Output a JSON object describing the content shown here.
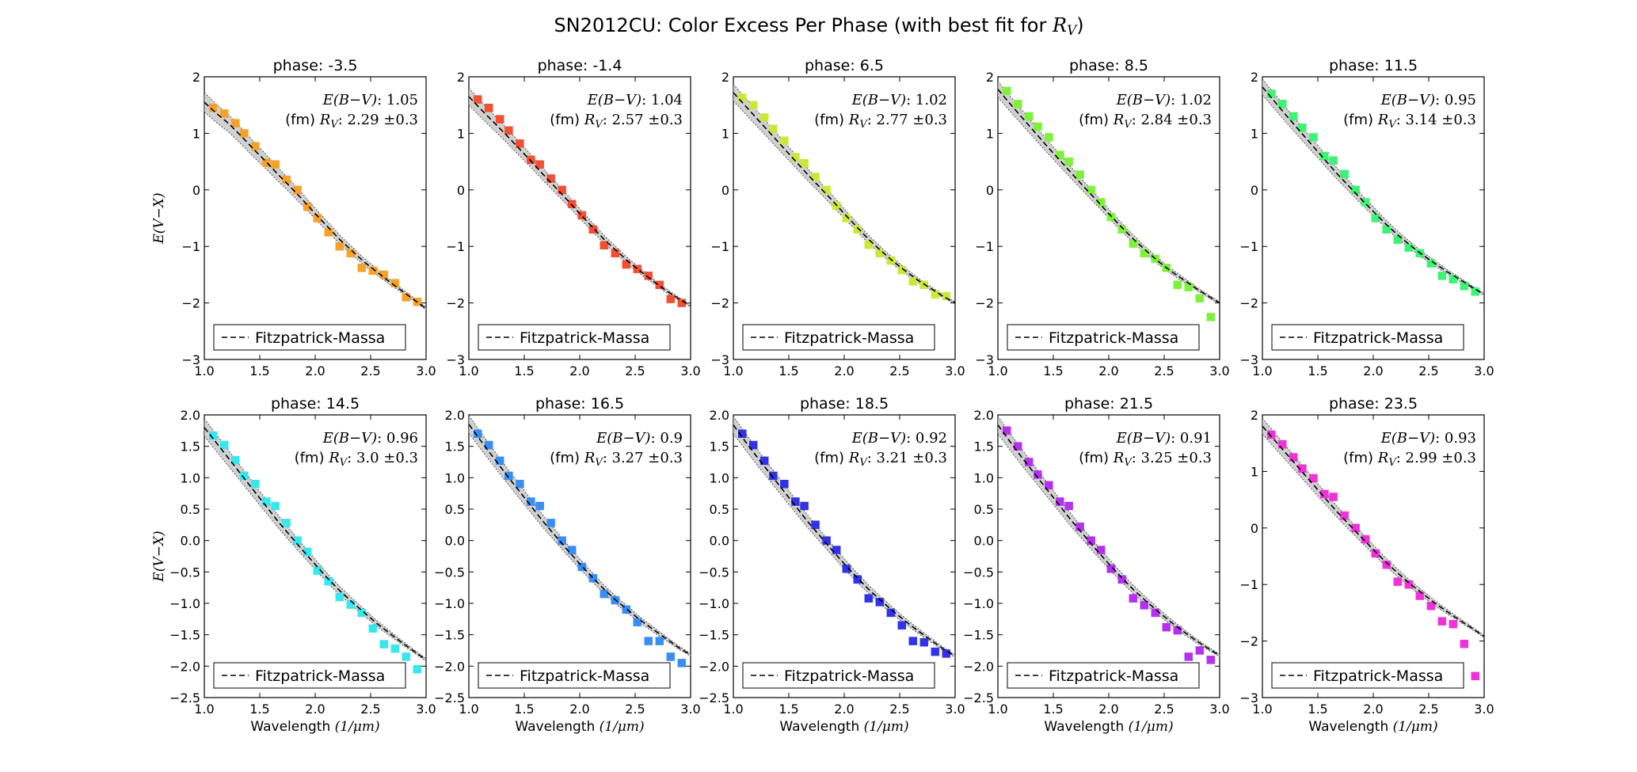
{
  "figure": {
    "title": "SN2012CU: Color Excess Per Phase (with best fit for R_V)",
    "ylabel": "E(V−X)",
    "xlabel": "Wavelength (1/μm)",
    "legend_label": "Fitzpatrick-Massa",
    "ebv_label": "E(B−V): ",
    "rv_label": "(fm) R_V: ",
    "rv_error": "±0.3"
  },
  "chart_data": [
    {
      "type": "scatter",
      "phase_label": "phase: -3.5",
      "color": "#f7a128",
      "ebv": "1.05",
      "rv": "2.29",
      "ylim": [
        -3,
        2
      ],
      "yticks": [
        "2",
        "1",
        "0",
        "−1",
        "−2",
        "−3"
      ],
      "xlim": [
        1.0,
        3.0
      ],
      "xticks": [
        "1.0",
        "1.5",
        "2.0",
        "2.5",
        "3.0"
      ],
      "x": [
        1.08,
        1.18,
        1.28,
        1.36,
        1.46,
        1.56,
        1.64,
        1.74,
        1.84,
        1.93,
        2.02,
        2.12,
        2.22,
        2.32,
        2.42,
        2.52,
        2.62,
        2.72,
        2.82,
        2.92
      ],
      "y": [
        1.45,
        1.35,
        1.18,
        1.0,
        0.77,
        0.48,
        0.45,
        0.18,
        0.0,
        -0.3,
        -0.5,
        -0.75,
        -1.0,
        -1.12,
        -1.38,
        -1.43,
        -1.5,
        -1.65,
        -1.9,
        -1.98
      ],
      "fit": [
        1.55,
        1.35,
        1.17,
        0.95,
        0.72,
        0.5,
        0.27,
        0.05,
        -0.18,
        -0.42,
        -0.65,
        -0.88,
        -1.08,
        -1.28,
        -1.45,
        -1.62,
        -1.78,
        -1.94,
        -2.1
      ],
      "band": 0.15
    },
    {
      "type": "scatter",
      "phase_label": "phase: -1.4",
      "color": "#f05034",
      "ebv": "1.04",
      "rv": "2.57",
      "ylim": [
        -3,
        2
      ],
      "yticks": [
        "2",
        "1",
        "0",
        "−1",
        "−2",
        "−3"
      ],
      "xlim": [
        1.0,
        3.0
      ],
      "xticks": [
        "1.0",
        "1.5",
        "2.0",
        "2.5",
        "3.0"
      ],
      "x": [
        1.08,
        1.18,
        1.28,
        1.36,
        1.46,
        1.56,
        1.64,
        1.74,
        1.84,
        1.93,
        2.02,
        2.12,
        2.22,
        2.32,
        2.42,
        2.52,
        2.62,
        2.72,
        2.82,
        2.92
      ],
      "y": [
        1.6,
        1.45,
        1.25,
        1.05,
        0.82,
        0.53,
        0.45,
        0.2,
        0.0,
        -0.25,
        -0.45,
        -0.7,
        -0.98,
        -1.12,
        -1.32,
        -1.4,
        -1.52,
        -1.68,
        -1.93,
        -2.0
      ],
      "fit": [
        1.65,
        1.42,
        1.2,
        0.98,
        0.75,
        0.52,
        0.28,
        0.05,
        -0.18,
        -0.42,
        -0.65,
        -0.88,
        -1.08,
        -1.28,
        -1.45,
        -1.62,
        -1.78,
        -1.92,
        -2.05
      ],
      "band": 0.13
    },
    {
      "type": "scatter",
      "phase_label": "phase: 6.5",
      "color": "#cbe83a",
      "ebv": "1.02",
      "rv": "2.77",
      "ylim": [
        -3,
        2
      ],
      "yticks": [
        "2",
        "1",
        "0",
        "−1",
        "−2",
        "−3"
      ],
      "xlim": [
        1.0,
        3.0
      ],
      "xticks": [
        "1.0",
        "1.5",
        "2.0",
        "2.5",
        "3.0"
      ],
      "x": [
        1.08,
        1.18,
        1.28,
        1.36,
        1.46,
        1.56,
        1.64,
        1.74,
        1.84,
        1.93,
        2.02,
        2.12,
        2.22,
        2.32,
        2.42,
        2.52,
        2.62,
        2.72,
        2.82,
        2.92
      ],
      "y": [
        1.63,
        1.5,
        1.28,
        1.08,
        0.87,
        0.58,
        0.47,
        0.23,
        0.0,
        -0.28,
        -0.5,
        -0.7,
        -0.97,
        -1.12,
        -1.25,
        -1.42,
        -1.62,
        -1.68,
        -1.85,
        -1.88
      ],
      "fit": [
        1.72,
        1.48,
        1.24,
        1.0,
        0.76,
        0.52,
        0.28,
        0.05,
        -0.18,
        -0.42,
        -0.65,
        -0.88,
        -1.08,
        -1.27,
        -1.44,
        -1.6,
        -1.74,
        -1.88,
        -2.0
      ],
      "band": 0.13
    },
    {
      "type": "scatter",
      "phase_label": "phase: 8.5",
      "color": "#7ef23a",
      "ebv": "1.02",
      "rv": "2.84",
      "ylim": [
        -3,
        2
      ],
      "yticks": [
        "2",
        "1",
        "0",
        "−1",
        "−2",
        "−3"
      ],
      "xlim": [
        1.0,
        3.0
      ],
      "xticks": [
        "1.0",
        "1.5",
        "2.0",
        "2.5",
        "3.0"
      ],
      "x": [
        1.08,
        1.18,
        1.28,
        1.36,
        1.46,
        1.56,
        1.64,
        1.74,
        1.84,
        1.93,
        2.02,
        2.12,
        2.22,
        2.32,
        2.42,
        2.52,
        2.62,
        2.72,
        2.82,
        2.92
      ],
      "y": [
        1.75,
        1.52,
        1.3,
        1.12,
        0.93,
        0.62,
        0.5,
        0.27,
        0.0,
        -0.22,
        -0.48,
        -0.7,
        -0.95,
        -1.12,
        -1.22,
        -1.38,
        -1.68,
        -1.72,
        -1.92,
        -2.25
      ],
      "fit": [
        1.78,
        1.52,
        1.27,
        1.02,
        0.77,
        0.53,
        0.29,
        0.05,
        -0.18,
        -0.42,
        -0.65,
        -0.87,
        -1.07,
        -1.26,
        -1.43,
        -1.58,
        -1.73,
        -1.87,
        -2.0
      ],
      "band": 0.12
    },
    {
      "type": "scatter",
      "phase_label": "phase: 11.5",
      "color": "#3ef275",
      "ebv": "0.95",
      "rv": "3.14",
      "ylim": [
        -3,
        2
      ],
      "yticks": [
        "2",
        "1",
        "0",
        "−1",
        "−2",
        "−3"
      ],
      "xlim": [
        1.0,
        3.0
      ],
      "xticks": [
        "1.0",
        "1.5",
        "2.0",
        "2.5",
        "3.0"
      ],
      "x": [
        1.08,
        1.18,
        1.28,
        1.36,
        1.46,
        1.56,
        1.64,
        1.74,
        1.84,
        1.93,
        2.02,
        2.12,
        2.22,
        2.32,
        2.42,
        2.52,
        2.62,
        2.72,
        2.82,
        2.92
      ],
      "y": [
        1.7,
        1.52,
        1.3,
        1.1,
        0.93,
        0.6,
        0.52,
        0.28,
        0.0,
        -0.22,
        -0.5,
        -0.7,
        -0.88,
        -1.02,
        -1.12,
        -1.3,
        -1.52,
        -1.58,
        -1.7,
        -1.8
      ],
      "fit": [
        1.82,
        1.56,
        1.3,
        1.05,
        0.8,
        0.55,
        0.3,
        0.07,
        -0.16,
        -0.38,
        -0.6,
        -0.8,
        -0.98,
        -1.15,
        -1.3,
        -1.45,
        -1.58,
        -1.72,
        -1.85
      ],
      "band": 0.12
    },
    {
      "type": "scatter",
      "phase_label": "phase: 14.5",
      "color": "#38e6ee",
      "ebv": "0.96",
      "rv": "3.0",
      "ylim": [
        -2.5,
        2.0
      ],
      "yticks": [
        "2.0",
        "1.5",
        "1.0",
        "0.5",
        "0.0",
        "−0.5",
        "−1.0",
        "−1.5",
        "−2.0",
        "−2.5"
      ],
      "xlim": [
        1.0,
        3.0
      ],
      "xticks": [
        "1.0",
        "1.5",
        "2.0",
        "2.5",
        "3.0"
      ],
      "x": [
        1.08,
        1.18,
        1.28,
        1.36,
        1.46,
        1.56,
        1.64,
        1.74,
        1.84,
        1.93,
        2.02,
        2.12,
        2.22,
        2.32,
        2.42,
        2.52,
        2.62,
        2.72,
        2.82,
        2.92
      ],
      "y": [
        1.67,
        1.52,
        1.28,
        1.03,
        0.9,
        0.62,
        0.55,
        0.28,
        0.0,
        -0.18,
        -0.48,
        -0.65,
        -0.9,
        -1.02,
        -1.15,
        -1.4,
        -1.65,
        -1.72,
        -1.85,
        -2.05
      ],
      "fit": [
        1.8,
        1.55,
        1.3,
        1.05,
        0.8,
        0.55,
        0.3,
        0.07,
        -0.16,
        -0.38,
        -0.6,
        -0.8,
        -0.98,
        -1.15,
        -1.32,
        -1.47,
        -1.62,
        -1.76,
        -1.9
      ],
      "band": 0.12
    },
    {
      "type": "scatter",
      "phase_label": "phase: 16.5",
      "color": "#3a8ef2",
      "ebv": "0.9",
      "rv": "3.27",
      "ylim": [
        -2.5,
        2.0
      ],
      "yticks": [
        "2.0",
        "1.5",
        "1.0",
        "0.5",
        "0.0",
        "−0.5",
        "−1.0",
        "−1.5",
        "−2.0",
        "−2.5"
      ],
      "xlim": [
        1.0,
        3.0
      ],
      "xticks": [
        "1.0",
        "1.5",
        "2.0",
        "2.5",
        "3.0"
      ],
      "x": [
        1.08,
        1.18,
        1.28,
        1.36,
        1.46,
        1.56,
        1.64,
        1.74,
        1.84,
        1.93,
        2.02,
        2.12,
        2.22,
        2.32,
        2.42,
        2.52,
        2.62,
        2.72,
        2.82,
        2.92
      ],
      "y": [
        1.7,
        1.52,
        1.27,
        1.03,
        0.9,
        0.62,
        0.55,
        0.28,
        0.0,
        -0.15,
        -0.42,
        -0.6,
        -0.85,
        -0.95,
        -1.1,
        -1.3,
        -1.6,
        -1.6,
        -1.85,
        -1.95
      ],
      "fit": [
        1.85,
        1.58,
        1.32,
        1.06,
        0.81,
        0.56,
        0.31,
        0.08,
        -0.15,
        -0.37,
        -0.58,
        -0.78,
        -0.96,
        -1.12,
        -1.28,
        -1.42,
        -1.56,
        -1.7,
        -1.82
      ],
      "band": 0.12
    },
    {
      "type": "scatter",
      "phase_label": "phase: 18.5",
      "color": "#3232e8",
      "ebv": "0.92",
      "rv": "3.21",
      "ylim": [
        -2.5,
        2.0
      ],
      "yticks": [
        "2.0",
        "1.5",
        "1.0",
        "0.5",
        "0.0",
        "−0.5",
        "−1.0",
        "−1.5",
        "−2.0",
        "−2.5"
      ],
      "xlim": [
        1.0,
        3.0
      ],
      "xticks": [
        "1.0",
        "1.5",
        "2.0",
        "2.5",
        "3.0"
      ],
      "x": [
        1.08,
        1.18,
        1.28,
        1.36,
        1.46,
        1.56,
        1.64,
        1.74,
        1.84,
        1.93,
        2.02,
        2.12,
        2.22,
        2.32,
        2.42,
        2.52,
        2.62,
        2.72,
        2.82,
        2.92
      ],
      "y": [
        1.7,
        1.52,
        1.27,
        1.03,
        0.9,
        0.62,
        0.55,
        0.25,
        0.0,
        -0.15,
        -0.45,
        -0.62,
        -0.92,
        -0.98,
        -1.15,
        -1.35,
        -1.6,
        -1.62,
        -1.77,
        -1.8
      ],
      "fit": [
        1.84,
        1.57,
        1.31,
        1.06,
        0.81,
        0.56,
        0.31,
        0.08,
        -0.15,
        -0.37,
        -0.58,
        -0.78,
        -0.96,
        -1.13,
        -1.29,
        -1.44,
        -1.58,
        -1.72,
        -1.84
      ],
      "band": 0.12
    },
    {
      "type": "scatter",
      "phase_label": "phase: 21.5",
      "color": "#b432ee",
      "ebv": "0.91",
      "rv": "3.25",
      "ylim": [
        -2.5,
        2.0
      ],
      "yticks": [
        "2.0",
        "1.5",
        "1.0",
        "0.5",
        "0.0",
        "−0.5",
        "−1.0",
        "−1.5",
        "−2.0",
        "−2.5"
      ],
      "xlim": [
        1.0,
        3.0
      ],
      "xticks": [
        "1.0",
        "1.5",
        "2.0",
        "2.5",
        "3.0"
      ],
      "x": [
        1.08,
        1.18,
        1.28,
        1.36,
        1.46,
        1.56,
        1.64,
        1.74,
        1.84,
        1.93,
        2.02,
        2.12,
        2.22,
        2.32,
        2.42,
        2.52,
        2.62,
        2.72,
        2.82,
        2.92
      ],
      "y": [
        1.75,
        1.5,
        1.25,
        1.05,
        0.88,
        0.62,
        0.55,
        0.22,
        0.0,
        -0.15,
        -0.45,
        -0.62,
        -0.92,
        -1.03,
        -1.15,
        -1.38,
        -1.43,
        -1.85,
        -1.75,
        -1.9
      ],
      "fit": [
        1.84,
        1.57,
        1.31,
        1.06,
        0.81,
        0.56,
        0.31,
        0.08,
        -0.15,
        -0.37,
        -0.58,
        -0.78,
        -0.96,
        -1.13,
        -1.29,
        -1.44,
        -1.58,
        -1.71,
        -1.83
      ],
      "band": 0.12
    },
    {
      "type": "scatter",
      "phase_label": "phase: 23.5",
      "color": "#ee32d8",
      "ebv": "0.93",
      "rv": "2.99",
      "ylim": [
        -3,
        2
      ],
      "yticks": [
        "2",
        "1",
        "0",
        "−1",
        "−2",
        "−3"
      ],
      "xlim": [
        1.0,
        3.0
      ],
      "xticks": [
        "1.0",
        "1.5",
        "2.0",
        "2.5",
        "3.0"
      ],
      "x": [
        1.08,
        1.18,
        1.28,
        1.36,
        1.46,
        1.56,
        1.64,
        1.74,
        1.84,
        1.93,
        2.02,
        2.12,
        2.22,
        2.32,
        2.42,
        2.52,
        2.62,
        2.72,
        2.82,
        2.92
      ],
      "y": [
        1.65,
        1.48,
        1.25,
        1.05,
        0.88,
        0.6,
        0.55,
        0.22,
        0.0,
        -0.2,
        -0.45,
        -0.65,
        -0.95,
        -1.0,
        -1.2,
        -1.38,
        -1.65,
        -1.7,
        -2.05,
        -2.62
      ],
      "fit": [
        1.8,
        1.55,
        1.3,
        1.05,
        0.8,
        0.55,
        0.3,
        0.07,
        -0.16,
        -0.38,
        -0.6,
        -0.8,
        -0.99,
        -1.16,
        -1.33,
        -1.48,
        -1.63,
        -1.77,
        -1.92
      ],
      "band": 0.12
    }
  ]
}
